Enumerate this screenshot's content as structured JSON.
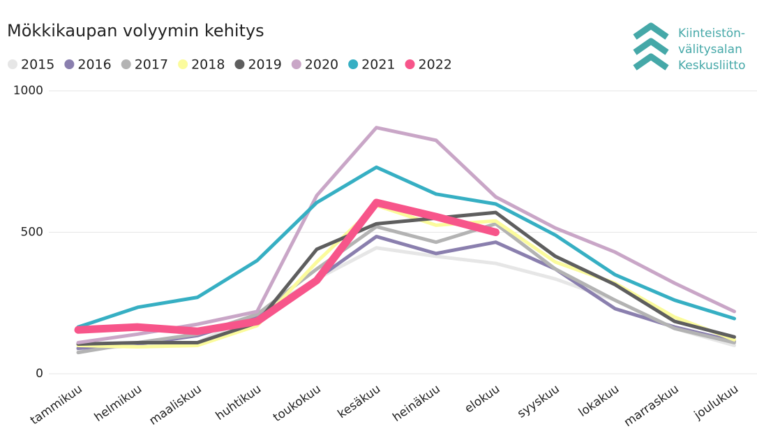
{
  "chart_data": {
    "type": "line",
    "title": "Mökkikaupan volyymin kehitys",
    "logo": [
      "Kiinteistön-",
      "välitysalan",
      "Keskusliitto"
    ],
    "categories": [
      "tammikuu",
      "helmikuu",
      "maaliskuu",
      "huhtikuu",
      "toukokuu",
      "kesäkuu",
      "heinäkuu",
      "elokuu",
      "syyskuu",
      "lokakuu",
      "marraskuu",
      "joulukuu"
    ],
    "ylim": [
      0,
      1000
    ],
    "yticks": [
      0,
      500,
      1000
    ],
    "grid": true,
    "series": [
      {
        "name": "2015",
        "color": "#e6e6e6",
        "values": [
          85,
          100,
          110,
          210,
          335,
          445,
          415,
          390,
          335,
          260,
          160,
          100
        ]
      },
      {
        "name": "2016",
        "color": "#8a7fae",
        "values": [
          90,
          105,
          135,
          200,
          335,
          485,
          425,
          465,
          370,
          230,
          165,
          115
        ]
      },
      {
        "name": "2017",
        "color": "#b3b3b3",
        "values": [
          75,
          110,
          140,
          210,
          370,
          520,
          465,
          530,
          370,
          260,
          160,
          110
        ]
      },
      {
        "name": "2018",
        "color": "#fbfb9c",
        "values": [
          100,
          95,
          100,
          170,
          395,
          595,
          525,
          540,
          395,
          320,
          200,
          120
        ]
      },
      {
        "name": "2019",
        "color": "#5e5e5e",
        "values": [
          105,
          110,
          110,
          180,
          440,
          530,
          550,
          570,
          415,
          315,
          185,
          130
        ]
      },
      {
        "name": "2020",
        "color": "#c9a6c7",
        "values": [
          110,
          140,
          175,
          220,
          630,
          870,
          825,
          625,
          515,
          430,
          320,
          220
        ]
      },
      {
        "name": "2021",
        "color": "#36afc3",
        "values": [
          165,
          235,
          270,
          400,
          605,
          730,
          635,
          600,
          490,
          350,
          260,
          195
        ]
      },
      {
        "name": "2022",
        "color": "#f7558a",
        "values": [
          155,
          165,
          150,
          185,
          330,
          605,
          555,
          500,
          null,
          null,
          null,
          null
        ]
      }
    ]
  }
}
